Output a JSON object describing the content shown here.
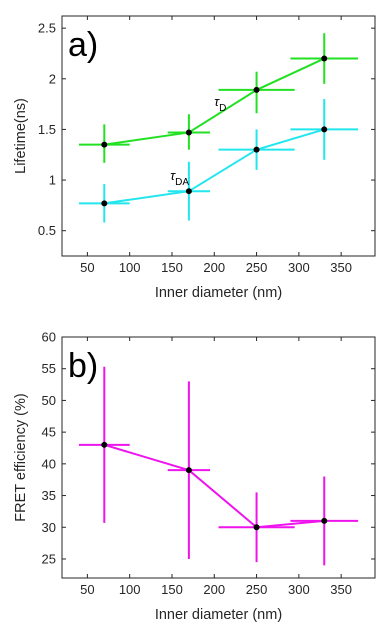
{
  "chart_data": [
    {
      "type": "line",
      "panel_label": "a)",
      "xlabel": "Inner diameter (nm)",
      "ylabel": "Lifetime(ns)",
      "xlim": [
        20,
        390
      ],
      "ylim": [
        0.25,
        2.62
      ],
      "xticks": [
        50,
        100,
        150,
        200,
        250,
        300,
        350
      ],
      "yticks": [
        0.5,
        1,
        1.5,
        2,
        2.5
      ],
      "xtick_labels": [
        "50",
        "100",
        "150",
        "200",
        "250",
        "300",
        "350"
      ],
      "ytick_labels": [
        "0.5",
        "1",
        "1.5",
        "2",
        "2.5"
      ],
      "grid": false,
      "series": [
        {
          "label_sym": "τ",
          "label_sub": "D",
          "label_at": [
            200,
            1.73
          ],
          "color": "#22e022",
          "x": [
            70,
            170,
            250,
            330
          ],
          "y": [
            1.35,
            1.47,
            1.89,
            2.2
          ],
          "x_err": [
            [
              30,
              30
            ],
            [
              25,
              25
            ],
            [
              45,
              45
            ],
            [
              40,
              40
            ]
          ],
          "y_err": [
            [
              0.18,
              0.2
            ],
            [
              0.17,
              0.18
            ],
            [
              0.23,
              0.18
            ],
            [
              0.25,
              0.25
            ]
          ]
        },
        {
          "label_sym": "τ",
          "label_sub": "DA",
          "label_at": [
            148,
            1.0
          ],
          "color": "#22e6ee",
          "x": [
            70,
            170,
            250,
            330
          ],
          "y": [
            0.77,
            0.89,
            1.3,
            1.5
          ],
          "x_err": [
            [
              30,
              30
            ],
            [
              25,
              25
            ],
            [
              45,
              45
            ],
            [
              40,
              40
            ]
          ],
          "y_err": [
            [
              0.19,
              0.19
            ],
            [
              0.29,
              0.29
            ],
            [
              0.2,
              0.2
            ],
            [
              0.3,
              0.3
            ]
          ]
        }
      ]
    },
    {
      "type": "line",
      "panel_label": "b)",
      "xlabel": "Inner diameter (nm)",
      "ylabel": "FRET efficiency (%)",
      "xlim": [
        20,
        390
      ],
      "ylim": [
        22,
        60
      ],
      "xticks": [
        50,
        100,
        150,
        200,
        250,
        300,
        350
      ],
      "yticks": [
        25,
        30,
        35,
        40,
        45,
        50,
        55,
        60
      ],
      "xtick_labels": [
        "50",
        "100",
        "150",
        "200",
        "250",
        "300",
        "350"
      ],
      "ytick_labels": [
        "25",
        "30",
        "35",
        "40",
        "45",
        "50",
        "55",
        "60"
      ],
      "grid": false,
      "series": [
        {
          "color": "#ee14ee",
          "x": [
            70,
            170,
            250,
            330
          ],
          "y": [
            43,
            39,
            30,
            31
          ],
          "x_err": [
            [
              30,
              30
            ],
            [
              25,
              25
            ],
            [
              45,
              45
            ],
            [
              40,
              40
            ]
          ],
          "y_err": [
            [
              12.3,
              12.3
            ],
            [
              14,
              14
            ],
            [
              5.5,
              5.5
            ],
            [
              7,
              7
            ]
          ]
        }
      ]
    }
  ]
}
